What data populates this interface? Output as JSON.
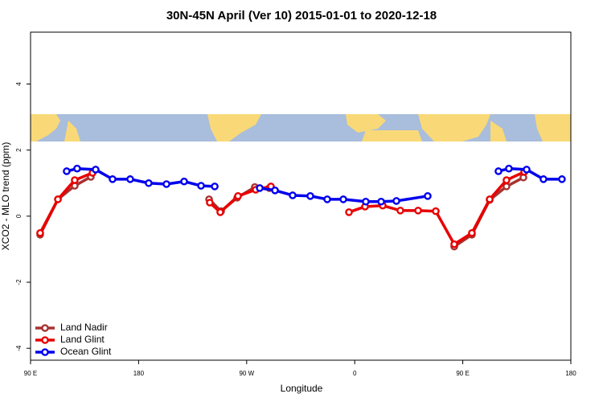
{
  "chart_data": {
    "type": "line",
    "title": "30N-45N April (Ver 10)   2015-01-01 to 2020-12-18",
    "x_label": "Longitude",
    "y_label": "XCO2 - MLO trend (ppm)",
    "xlim": [
      90,
      540
    ],
    "ylim": [
      -4.36,
      5.57
    ],
    "xticks": [
      {
        "value": 90,
        "label": "90 E"
      },
      180,
      {
        "value": 270,
        "label": "90 W"
      },
      {
        "value": 360,
        "label": "0"
      },
      {
        "value": 450,
        "label": "90 E"
      },
      {
        "value": 540,
        "label": "180"
      }
    ],
    "yticks": [
      -4,
      -2,
      0,
      2,
      4
    ],
    "legend": "bottom-left",
    "series": [
      {
        "name": "Land Nadir",
        "color": "#a83232",
        "x": [
          98.0,
          112.8,
          126.8,
          140.2,
          null,
          238.7,
          248.7,
          262.1,
          276.8,
          288.9,
          null,
          442.9,
          457.6,
          472.4,
          486.4,
          500.5
        ],
        "values": [
          -0.56,
          0.51,
          0.92,
          1.19,
          null,
          0.51,
          0.15,
          0.56,
          0.88,
          0.85,
          null,
          -0.92,
          -0.56,
          0.49,
          0.9,
          1.17
        ]
      },
      {
        "name": "Land Glint",
        "color": "#e80000",
        "x": [
          98.0,
          112.8,
          126.8,
          141.6,
          null,
          239.3,
          248.0,
          262.8,
          277.5,
          290.2,
          null,
          355.2,
          368.6,
          383.3,
          398.0,
          412.8,
          427.5,
          442.9,
          457.6,
          472.4,
          486.4,
          501.2
        ],
        "values": [
          -0.51,
          0.51,
          1.09,
          1.31,
          null,
          0.41,
          0.12,
          0.61,
          0.8,
          0.9,
          null,
          0.12,
          0.29,
          0.32,
          0.17,
          0.17,
          0.15,
          -0.85,
          -0.51,
          0.51,
          1.09,
          1.34
        ]
      },
      {
        "name": "Ocean Glint",
        "color": "#0000ee",
        "x": [
          120.1,
          128.8,
          144.2,
          158.3,
          173.0,
          188.4,
          203.2,
          217.9,
          232.0,
          243.4,
          null,
          280.9,
          293.6,
          308.3,
          323.0,
          337.1,
          350.5,
          369.2,
          382.0,
          394.7,
          420.8,
          null,
          479.7,
          488.4,
          503.2,
          517.2,
          532.6
        ],
        "values": [
          1.36,
          1.44,
          1.41,
          1.12,
          1.12,
          1.0,
          0.97,
          1.05,
          0.92,
          0.9,
          null,
          0.85,
          0.78,
          0.63,
          0.61,
          0.51,
          0.51,
          0.44,
          0.44,
          0.46,
          0.61,
          null,
          1.36,
          1.44,
          1.41,
          1.12,
          1.12
        ]
      }
    ]
  }
}
